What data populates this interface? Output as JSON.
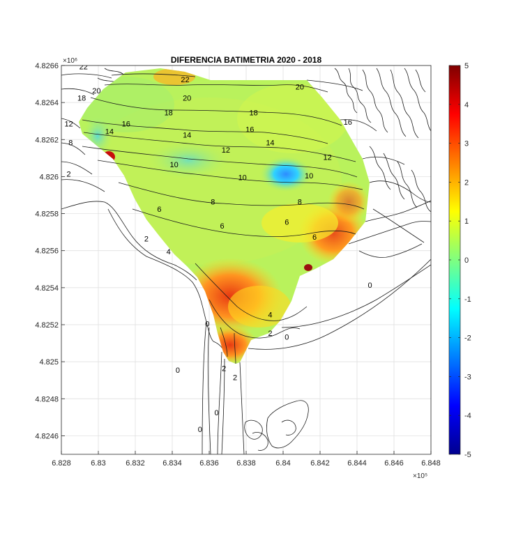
{
  "chart_data": {
    "type": "heatmap",
    "title": "DIFERENCIA BATIMETRIA 2020 - 2018",
    "xlabel": "",
    "ylabel": "",
    "x_scale_label": "×10⁵",
    "y_scale_label": "×10⁶",
    "xlim": [
      6.828,
      6.848
    ],
    "ylim": [
      4.8245,
      4.8266
    ],
    "x_ticks": [
      "6.828",
      "6.83",
      "6.832",
      "6.834",
      "6.836",
      "6.838",
      "6.84",
      "6.842",
      "6.844",
      "6.846",
      "6.848"
    ],
    "y_ticks": [
      "4.8246",
      "4.8248",
      "4.825",
      "4.8252",
      "4.8254",
      "4.8256",
      "4.8258",
      "4.826",
      "4.8262",
      "4.8264",
      "4.8266"
    ],
    "grid": true,
    "colorbar": {
      "clim": [
        -5,
        5
      ],
      "ticks": [
        "5",
        "4",
        "3",
        "2",
        "1",
        "0",
        "-1",
        "-2",
        "-3",
        "-4",
        "-5"
      ],
      "colormap": "jet"
    },
    "dominant_difference_values": {
      "main_surface": 0.7,
      "blue_depression_near_6.840_4.8260": -0.9,
      "red_southwest_channel_near_6.8365_4.8253": 2.6,
      "red_east_margin_near_6.842_4.8256": 2.4
    },
    "contour_labels": [
      {
        "text": "22",
        "x": 6.8292,
        "y": 4.82658
      },
      {
        "text": "22",
        "x": 6.8347,
        "y": 4.82651
      },
      {
        "text": "20",
        "x": 6.8299,
        "y": 4.82645
      },
      {
        "text": "20",
        "x": 6.8348,
        "y": 4.82641
      },
      {
        "text": "20",
        "x": 6.8409,
        "y": 4.82647
      },
      {
        "text": "18",
        "x": 6.8291,
        "y": 4.82641
      },
      {
        "text": "18",
        "x": 6.8338,
        "y": 4.82633
      },
      {
        "text": "18",
        "x": 6.8384,
        "y": 4.82633
      },
      {
        "text": "16",
        "x": 6.8315,
        "y": 4.82627
      },
      {
        "text": "16",
        "x": 6.8382,
        "y": 4.82624
      },
      {
        "text": "16",
        "x": 6.8435,
        "y": 4.82628
      },
      {
        "text": "14",
        "x": 6.8306,
        "y": 4.82623
      },
      {
        "text": "14",
        "x": 6.8348,
        "y": 4.82621
      },
      {
        "text": "14",
        "x": 6.8393,
        "y": 4.82617
      },
      {
        "text": "12",
        "x": 6.8284,
        "y": 4.82627
      },
      {
        "text": "12",
        "x": 6.8369,
        "y": 4.82613
      },
      {
        "text": "12",
        "x": 6.8424,
        "y": 4.82609
      },
      {
        "text": "10",
        "x": 6.8341,
        "y": 4.82605
      },
      {
        "text": "10",
        "x": 6.8378,
        "y": 4.82598
      },
      {
        "text": "10",
        "x": 6.8414,
        "y": 4.82599
      },
      {
        "text": "8",
        "x": 6.8285,
        "y": 4.82617
      },
      {
        "text": "8",
        "x": 6.8362,
        "y": 4.82585
      },
      {
        "text": "8",
        "x": 6.8409,
        "y": 4.82585
      },
      {
        "text": "6",
        "x": 6.8333,
        "y": 4.82581
      },
      {
        "text": "6",
        "x": 6.8367,
        "y": 4.82572
      },
      {
        "text": "6",
        "x": 6.8402,
        "y": 4.82574
      },
      {
        "text": "6",
        "x": 6.8417,
        "y": 4.82566
      },
      {
        "text": "4",
        "x": 6.8338,
        "y": 4.82558
      },
      {
        "text": "4",
        "x": 6.8393,
        "y": 4.82524
      },
      {
        "text": "2",
        "x": 6.8284,
        "y": 4.826
      },
      {
        "text": "2",
        "x": 6.8326,
        "y": 4.82565
      },
      {
        "text": "2",
        "x": 6.8393,
        "y": 4.82514
      },
      {
        "text": "2",
        "x": 6.8368,
        "y": 4.82495
      },
      {
        "text": "2",
        "x": 6.8374,
        "y": 4.8249
      },
      {
        "text": "0",
        "x": 6.8359,
        "y": 4.82519
      },
      {
        "text": "0",
        "x": 6.8402,
        "y": 4.82512
      },
      {
        "text": "0",
        "x": 6.8447,
        "y": 4.8254
      },
      {
        "text": "0",
        "x": 6.8343,
        "y": 4.82494
      },
      {
        "text": "0",
        "x": 6.8355,
        "y": 4.82462
      },
      {
        "text": "0",
        "x": 6.8364,
        "y": 4.82471
      }
    ]
  },
  "colors": {
    "background": "#ffffff",
    "grid": "#dcdcdc",
    "contour": "#1a1a1a"
  }
}
